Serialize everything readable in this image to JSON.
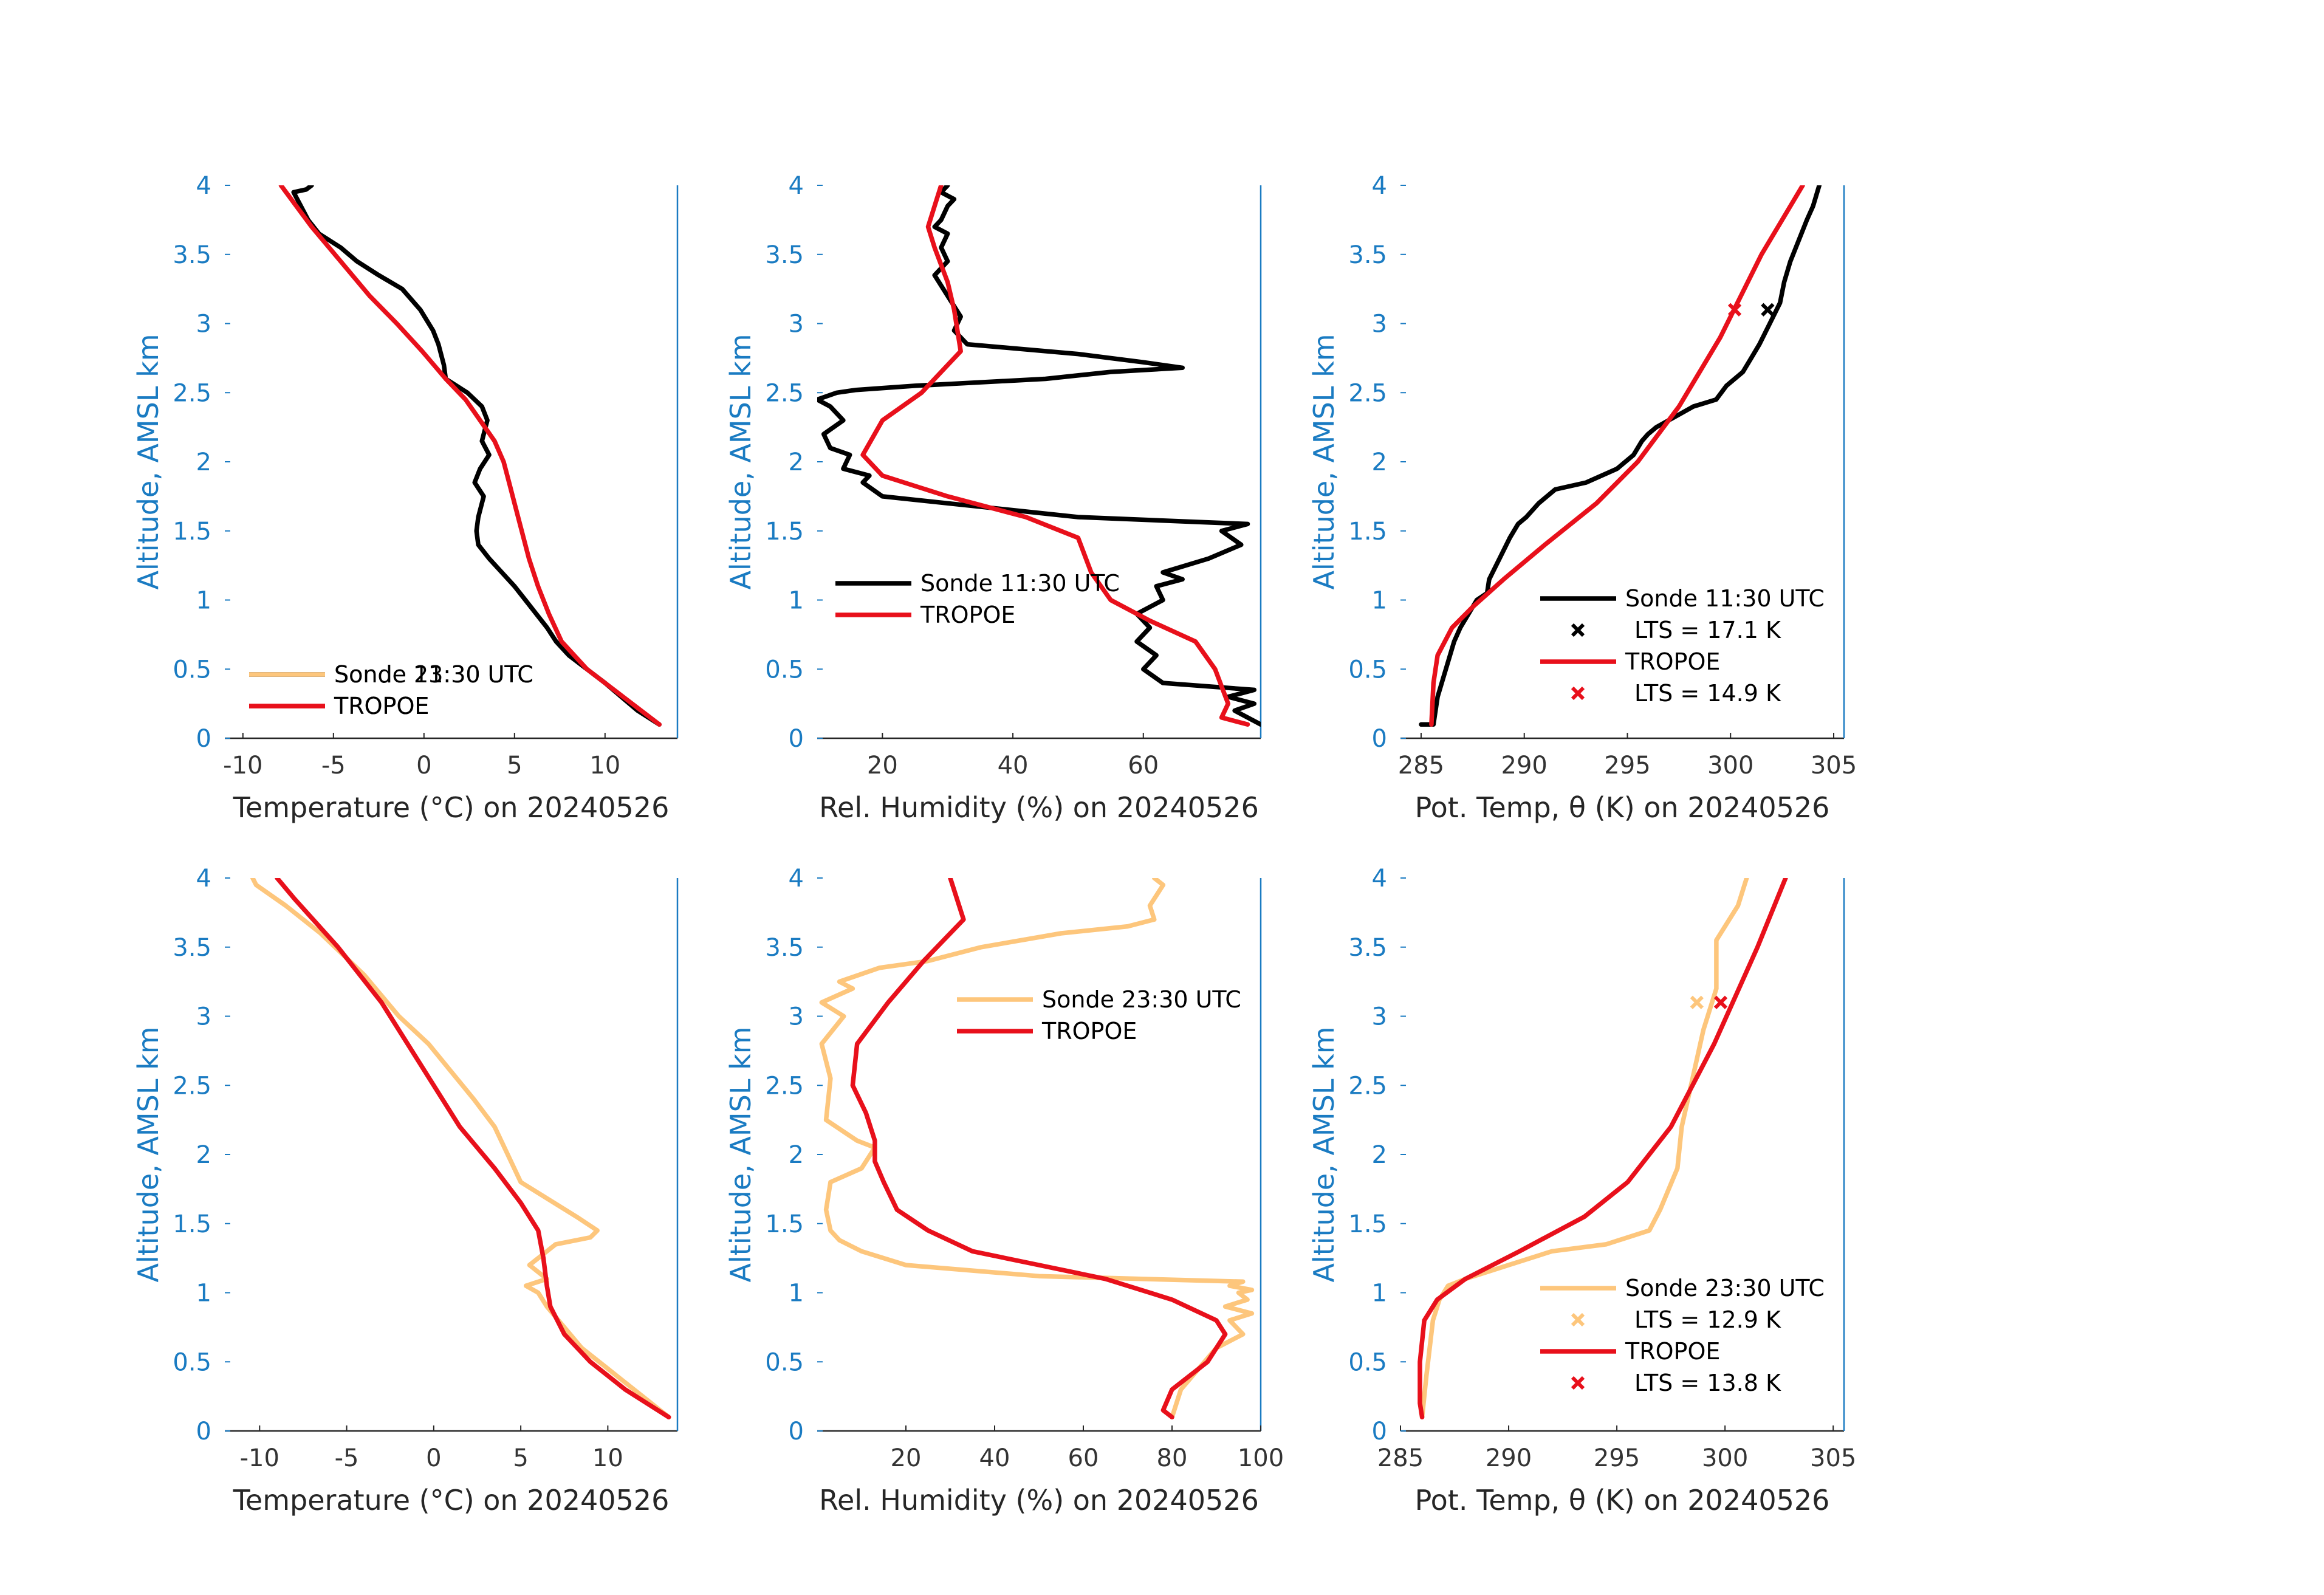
{
  "chart_data": [
    {
      "type": "line",
      "id": "temp-1130",
      "xlabel": "Temperature (°C) on 20240526",
      "ylabel": "Altitude, AMSL km",
      "xlim": [
        -11,
        14
      ],
      "ylim": [
        0,
        4
      ],
      "xticks": [
        -10,
        -5,
        0,
        5,
        10
      ],
      "yticks": [
        0,
        0.5,
        1,
        1.5,
        2,
        2.5,
        3,
        3.5,
        4
      ],
      "legend_position": "bottom-left",
      "series": [
        {
          "name": "Sonde 11:30 UTC",
          "color": "#000000",
          "x": [
            13.0,
            11.8,
            10.0,
            9.0,
            8.0,
            7.3,
            6.8,
            6.2,
            5.6,
            5.0,
            4.3,
            3.6,
            3.0,
            2.9,
            3.0,
            3.3,
            2.8,
            3.1,
            3.6,
            3.2,
            3.4,
            3.5,
            3.2,
            2.4,
            1.2,
            1.1,
            0.8,
            0.5,
            -0.2,
            -1.2,
            -2.5,
            -3.7,
            -4.6,
            -5.8,
            -6.4,
            -6.8,
            -7.2,
            -6.5,
            -6.2
          ],
          "y": [
            0.1,
            0.2,
            0.4,
            0.5,
            0.6,
            0.7,
            0.8,
            0.9,
            1.0,
            1.1,
            1.2,
            1.3,
            1.4,
            1.5,
            1.6,
            1.75,
            1.85,
            1.95,
            2.05,
            2.15,
            2.25,
            2.3,
            2.4,
            2.5,
            2.6,
            2.7,
            2.85,
            2.95,
            3.1,
            3.25,
            3.35,
            3.45,
            3.55,
            3.65,
            3.75,
            3.85,
            3.95,
            3.97,
            4.0
          ]
        },
        {
          "name": "TROPOE",
          "color": "#e8101b",
          "x": [
            13.0,
            11.0,
            9.0,
            7.6,
            6.9,
            6.3,
            5.8,
            5.4,
            5.0,
            4.7,
            4.4,
            3.9,
            3.1,
            2.3,
            1.2,
            -0.1,
            -1.5,
            -3.0,
            -4.6,
            -6.2,
            -7.9
          ],
          "y": [
            0.1,
            0.3,
            0.5,
            0.7,
            0.9,
            1.1,
            1.3,
            1.5,
            1.7,
            1.85,
            2.0,
            2.15,
            2.3,
            2.45,
            2.6,
            2.8,
            3.0,
            3.2,
            3.45,
            3.7,
            4.0
          ]
        }
      ]
    },
    {
      "type": "line",
      "id": "rh-1130",
      "xlabel": "Rel. Humidity (%) on 20240526",
      "ylabel": "Altitude, AMSL km",
      "xlim": [
        10,
        78
      ],
      "ylim": [
        0,
        4
      ],
      "xticks": [
        20,
        40,
        60
      ],
      "yticks": [
        0,
        0.5,
        1,
        1.5,
        2,
        2.5,
        3,
        3.5,
        4
      ],
      "legend_position": "center-left",
      "series": [
        {
          "name": "Sonde 11:30 UTC",
          "color": "#000000",
          "x": [
            78,
            74,
            77,
            73,
            77,
            63,
            60,
            62,
            59,
            61,
            59,
            63,
            62,
            66,
            63,
            70,
            75,
            72,
            76,
            50,
            40,
            30,
            20,
            17,
            18,
            14,
            15,
            12,
            11,
            14,
            12,
            10,
            13,
            16,
            25,
            45,
            55,
            66,
            60,
            50,
            33,
            31,
            32,
            30,
            28,
            30,
            29,
            30,
            28,
            29,
            30,
            31,
            29,
            30
          ],
          "y": [
            0.1,
            0.2,
            0.25,
            0.3,
            0.35,
            0.4,
            0.5,
            0.6,
            0.7,
            0.8,
            0.9,
            1.0,
            1.1,
            1.15,
            1.2,
            1.3,
            1.4,
            1.5,
            1.55,
            1.6,
            1.65,
            1.7,
            1.75,
            1.85,
            1.9,
            1.95,
            2.05,
            2.1,
            2.2,
            2.3,
            2.4,
            2.45,
            2.5,
            2.52,
            2.55,
            2.6,
            2.65,
            2.68,
            2.72,
            2.78,
            2.85,
            2.95,
            3.05,
            3.2,
            3.35,
            3.45,
            3.55,
            3.65,
            3.7,
            3.75,
            3.85,
            3.9,
            3.95,
            4.0
          ]
        },
        {
          "name": "TROPOE",
          "color": "#e8101b",
          "x": [
            76,
            72,
            73,
            71,
            68,
            61,
            55,
            52,
            50,
            42,
            30,
            20,
            17,
            20,
            26,
            30,
            32,
            31,
            30,
            28,
            27,
            28,
            29
          ],
          "y": [
            0.1,
            0.15,
            0.25,
            0.5,
            0.7,
            0.85,
            1.0,
            1.2,
            1.45,
            1.6,
            1.75,
            1.9,
            2.05,
            2.3,
            2.5,
            2.7,
            2.8,
            3.1,
            3.3,
            3.55,
            3.7,
            3.85,
            4.0
          ]
        }
      ]
    },
    {
      "type": "line",
      "id": "theta-1130",
      "xlabel": "Pot. Temp, θ (K) on 20240526",
      "ylabel": "Altitude, AMSL km",
      "xlim": [
        284,
        305.5
      ],
      "ylim": [
        0,
        4
      ],
      "xticks": [
        285,
        290,
        295,
        300,
        305
      ],
      "yticks": [
        0,
        0.5,
        1,
        1.5,
        2,
        2.5,
        3,
        3.5,
        4
      ],
      "legend_position": "bottom-right",
      "series": [
        {
          "name": "Sonde 11:30 UTC",
          "color": "#000000",
          "x": [
            285.0,
            285.6,
            285.8,
            286.2,
            286.6,
            286.9,
            287.3,
            287.7,
            288.2,
            288.3,
            288.8,
            289.3,
            289.7,
            290.1,
            290.7,
            291.5,
            293.0,
            294.5,
            295.3,
            295.7,
            296.0,
            296.4,
            297.6,
            298.2,
            299.3,
            299.8,
            300.6,
            301.0,
            301.4,
            301.9,
            302.4,
            302.6,
            302.9,
            303.3,
            303.7,
            304.0,
            304.3
          ],
          "y": [
            0.1,
            0.1,
            0.3,
            0.5,
            0.7,
            0.8,
            0.9,
            1.0,
            1.05,
            1.15,
            1.3,
            1.45,
            1.55,
            1.6,
            1.7,
            1.8,
            1.85,
            1.95,
            2.05,
            2.15,
            2.2,
            2.25,
            2.35,
            2.4,
            2.45,
            2.55,
            2.65,
            2.75,
            2.85,
            3.0,
            3.15,
            3.3,
            3.45,
            3.6,
            3.75,
            3.85,
            4.0
          ]
        },
        {
          "name": "TROPOE",
          "color": "#e8101b",
          "x": [
            285.5,
            285.6,
            285.8,
            286.5,
            287.5,
            289.0,
            291.0,
            293.5,
            295.5,
            297.5,
            299.5,
            301.5,
            303.5
          ],
          "y": [
            0.1,
            0.4,
            0.6,
            0.8,
            0.95,
            1.15,
            1.4,
            1.7,
            2.0,
            2.4,
            2.9,
            3.5,
            4.0
          ]
        }
      ],
      "markers": [
        {
          "name": "LTS = 17.1 K",
          "color": "#000000",
          "x": 301.8,
          "y": 3.1
        },
        {
          "name": "LTS = 14.9 K",
          "color": "#e8101b",
          "x": 300.2,
          "y": 3.1
        }
      ]
    },
    {
      "type": "line",
      "id": "temp-2330",
      "xlabel": "Temperature (°C) on 20240526",
      "ylabel": "Altitude, AMSL km",
      "xlim": [
        -12,
        14
      ],
      "ylim": [
        0,
        4
      ],
      "xticks": [
        -10,
        -5,
        0,
        5,
        10
      ],
      "yticks": [
        0,
        0.5,
        1,
        1.5,
        2,
        2.5,
        3,
        3.5,
        4
      ],
      "legend_position": "bottom-left",
      "series": [
        {
          "name": "Sonde 23:30 UTC",
          "color": "#fdc67c",
          "x": [
            13.5,
            12.0,
            10.0,
            8.5,
            7.5,
            6.5,
            6.0,
            5.3,
            6.5,
            5.5,
            6.5,
            7.0,
            9.0,
            9.4,
            8.2,
            5.0,
            3.5,
            2.3,
            1.0,
            -0.3,
            -2.0,
            -4.0,
            -6.5,
            -8.5,
            -10.2,
            -10.4
          ],
          "y": [
            0.1,
            0.25,
            0.45,
            0.6,
            0.75,
            0.9,
            1.0,
            1.05,
            1.1,
            1.2,
            1.3,
            1.35,
            1.4,
            1.45,
            1.55,
            1.8,
            2.2,
            2.4,
            2.6,
            2.8,
            3.0,
            3.3,
            3.6,
            3.8,
            3.95,
            4.0
          ]
        },
        {
          "name": "TROPOE",
          "color": "#e8101b",
          "x": [
            13.5,
            11.0,
            9.0,
            7.5,
            6.7,
            6.5,
            6.3,
            6.0,
            5.0,
            3.5,
            1.5,
            -0.5,
            -3.0,
            -5.5,
            -8.0,
            -9.0
          ],
          "y": [
            0.1,
            0.3,
            0.5,
            0.7,
            0.9,
            1.05,
            1.25,
            1.45,
            1.65,
            1.9,
            2.2,
            2.6,
            3.1,
            3.5,
            3.85,
            4.0
          ]
        }
      ]
    },
    {
      "type": "line",
      "id": "rh-2330",
      "xlabel": "Rel. Humidity (%) on 20240526",
      "ylabel": "Altitude, AMSL km",
      "xlim": [
        0,
        100
      ],
      "ylim": [
        0,
        4
      ],
      "xticks": [
        20,
        40,
        60,
        80,
        100
      ],
      "yticks": [
        0,
        0.5,
        1,
        1.5,
        2,
        2.5,
        3,
        3.5,
        4
      ],
      "legend_position": "top-right",
      "series": [
        {
          "name": "Sonde 23:30 UTC",
          "color": "#fdc67c",
          "x": [
            80,
            82,
            86,
            90,
            96,
            93,
            98,
            92,
            97,
            95,
            98,
            93,
            96,
            50,
            20,
            10,
            5,
            3,
            2,
            3,
            10,
            13,
            9,
            2,
            3,
            1,
            6,
            1,
            8,
            5,
            14,
            25,
            37,
            55,
            70,
            76,
            75,
            78,
            76
          ],
          "y": [
            0.1,
            0.3,
            0.45,
            0.6,
            0.7,
            0.8,
            0.85,
            0.9,
            0.95,
            1.0,
            1.02,
            1.05,
            1.08,
            1.12,
            1.2,
            1.3,
            1.38,
            1.45,
            1.6,
            1.8,
            1.9,
            2.05,
            2.1,
            2.25,
            2.55,
            2.8,
            3.0,
            3.1,
            3.2,
            3.25,
            3.35,
            3.4,
            3.5,
            3.6,
            3.65,
            3.7,
            3.8,
            3.95,
            4.0
          ]
        },
        {
          "name": "TROPOE",
          "color": "#e8101b",
          "x": [
            80,
            78,
            80,
            88,
            92,
            90,
            80,
            65,
            50,
            35,
            25,
            18,
            15,
            13,
            13,
            11,
            8,
            9,
            16,
            24,
            33,
            30
          ],
          "y": [
            0.1,
            0.15,
            0.3,
            0.5,
            0.7,
            0.8,
            0.95,
            1.1,
            1.2,
            1.3,
            1.45,
            1.6,
            1.8,
            1.95,
            2.1,
            2.3,
            2.5,
            2.8,
            3.1,
            3.4,
            3.7,
            4.0
          ]
        }
      ]
    },
    {
      "type": "line",
      "id": "theta-2330",
      "xlabel": "Pot. Temp, θ (K) on 20240526",
      "ylabel": "Altitude, AMSL km",
      "xlim": [
        285,
        305.5
      ],
      "ylim": [
        0,
        4
      ],
      "xticks": [
        285,
        290,
        295,
        300,
        305
      ],
      "yticks": [
        0,
        0.5,
        1,
        1.5,
        2,
        2.5,
        3,
        3.5,
        4
      ],
      "legend_position": "center-right",
      "series": [
        {
          "name": "Sonde 23:30 UTC",
          "color": "#fdc67c",
          "x": [
            286.0,
            286.2,
            286.5,
            286.8,
            287.2,
            288.0,
            290.0,
            292.0,
            294.5,
            296.5,
            297.0,
            297.8,
            298.0,
            298.5,
            299.0,
            299.6,
            299.6,
            300.6,
            301.0
          ],
          "y": [
            0.1,
            0.4,
            0.8,
            0.95,
            1.05,
            1.1,
            1.2,
            1.3,
            1.35,
            1.45,
            1.6,
            1.9,
            2.2,
            2.55,
            2.9,
            3.2,
            3.55,
            3.8,
            4.0
          ]
        },
        {
          "name": "TROPOE",
          "color": "#e8101b",
          "x": [
            286.0,
            285.9,
            285.9,
            286.1,
            286.7,
            288.0,
            290.5,
            293.5,
            295.5,
            297.5,
            299.5,
            301.5,
            302.8
          ],
          "y": [
            0.1,
            0.2,
            0.5,
            0.8,
            0.95,
            1.1,
            1.3,
            1.55,
            1.8,
            2.2,
            2.8,
            3.5,
            4.0
          ]
        }
      ],
      "markers": [
        {
          "name": "LTS = 12.9 K",
          "color": "#fdc67c",
          "x": 298.7,
          "y": 3.1
        },
        {
          "name": "LTS = 13.8 K",
          "color": "#e8101b",
          "x": 299.8,
          "y": 3.1
        }
      ]
    }
  ]
}
